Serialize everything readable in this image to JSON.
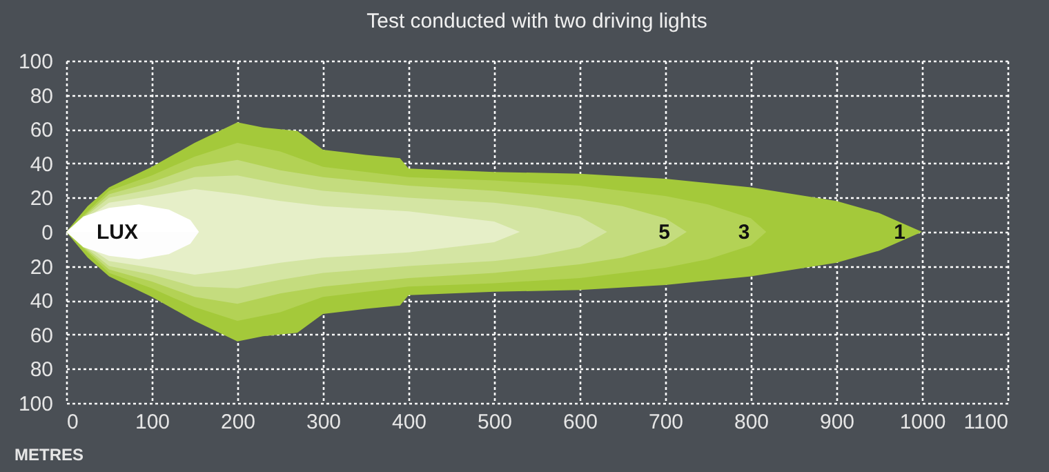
{
  "chart_data": {
    "type": "area",
    "title": "Test conducted with two driving lights",
    "xlabel": "METRES",
    "xlim": [
      0,
      1100
    ],
    "xticks": [
      0,
      100,
      200,
      300,
      400,
      500,
      600,
      700,
      800,
      900,
      1000,
      1100
    ],
    "ylim": [
      -100,
      100
    ],
    "yticks": [
      {
        "value": -100,
        "label": "100"
      },
      {
        "value": -80,
        "label": "80"
      },
      {
        "value": -60,
        "label": "60"
      },
      {
        "value": -40,
        "label": "40"
      },
      {
        "value": -20,
        "label": "20"
      },
      0,
      20,
      40,
      60,
      80,
      100
    ],
    "grid": true,
    "line_style": "dotted",
    "series": [
      {
        "name": "1",
        "color": "#a4c93a",
        "x": [
          0,
          25,
          50,
          100,
          150,
          200,
          230,
          270,
          300,
          350,
          390,
          400,
          500,
          600,
          700,
          800,
          900,
          950,
          1000
        ],
        "values": [
          0,
          15,
          26,
          38,
          52,
          64,
          61,
          59,
          48,
          45,
          43,
          37,
          35,
          34,
          31,
          26,
          18,
          11,
          0
        ]
      },
      {
        "color": "#a4c93a",
        "x": [
          0,
          25,
          50,
          100,
          150,
          200,
          230,
          270,
          300,
          350,
          390,
          400,
          500,
          600,
          700,
          800,
          900,
          950,
          1000
        ],
        "values": [
          0,
          -15,
          -26,
          -38,
          -52,
          -64,
          -61,
          -59,
          -48,
          -45,
          -43,
          -37,
          -35,
          -34,
          -31,
          -26,
          -18,
          -11,
          0
        ]
      },
      {
        "name": "3",
        "color": "#b3d255",
        "x": [
          0,
          50,
          100,
          150,
          200,
          250,
          300,
          400,
          500,
          600,
          700,
          750,
          800,
          818
        ],
        "values": [
          0,
          24,
          33,
          44,
          52,
          47,
          38,
          32,
          30,
          27,
          21,
          16,
          8,
          0
        ]
      },
      {
        "color": "#b3d255",
        "x": [
          0,
          50,
          100,
          150,
          200,
          250,
          300,
          400,
          500,
          600,
          700,
          750,
          800,
          818
        ],
        "values": [
          0,
          -24,
          -33,
          -44,
          -52,
          -47,
          -38,
          -32,
          -30,
          -27,
          -21,
          -16,
          -8,
          0
        ]
      },
      {
        "name": "5",
        "color": "#c4dc7e",
        "x": [
          0,
          50,
          100,
          150,
          200,
          250,
          300,
          400,
          500,
          600,
          650,
          700,
          725
        ],
        "values": [
          0,
          22,
          29,
          38,
          42,
          36,
          32,
          27,
          24,
          19,
          15,
          8,
          0
        ]
      },
      {
        "color": "#c4dc7e",
        "x": [
          0,
          50,
          100,
          150,
          200,
          250,
          300,
          400,
          500,
          600,
          650,
          700,
          725
        ],
        "values": [
          0,
          -22,
          -29,
          -38,
          -42,
          -36,
          -32,
          -27,
          -24,
          -19,
          -15,
          -8,
          0
        ]
      },
      {
        "color": "#d4e5a3",
        "x": [
          0,
          50,
          100,
          150,
          200,
          250,
          300,
          400,
          500,
          550,
          600,
          632
        ],
        "values": [
          0,
          20,
          25,
          32,
          33,
          28,
          24,
          20,
          17,
          14,
          9,
          0
        ]
      },
      {
        "color": "#d4e5a3",
        "x": [
          0,
          50,
          100,
          150,
          200,
          250,
          300,
          400,
          500,
          550,
          600,
          632
        ],
        "values": [
          0,
          -20,
          -25,
          -32,
          -33,
          -28,
          -24,
          -20,
          -17,
          -14,
          -9,
          0
        ]
      },
      {
        "color": "#e6efc8",
        "x": [
          0,
          50,
          100,
          150,
          200,
          250,
          300,
          400,
          450,
          500,
          530
        ],
        "values": [
          0,
          17,
          21,
          25,
          22,
          18,
          15,
          12,
          9,
          6,
          0
        ]
      },
      {
        "color": "#e6efc8",
        "x": [
          0,
          50,
          100,
          150,
          200,
          250,
          300,
          400,
          450,
          500,
          530
        ],
        "values": [
          0,
          -17,
          -21,
          -25,
          -22,
          -18,
          -15,
          -12,
          -9,
          -6,
          0
        ]
      },
      {
        "color": "#ffffff",
        "x": [
          0,
          20,
          50,
          85,
          120,
          145,
          155
        ],
        "values": [
          0,
          9,
          14,
          16,
          13,
          7,
          0
        ]
      },
      {
        "color": "#fdfdfd",
        "x": [
          0,
          20,
          50,
          85,
          120,
          145,
          155
        ],
        "values": [
          0,
          -9,
          -14,
          -16,
          -13,
          -7,
          0
        ]
      }
    ],
    "annotations": [
      "LUX"
    ]
  }
}
